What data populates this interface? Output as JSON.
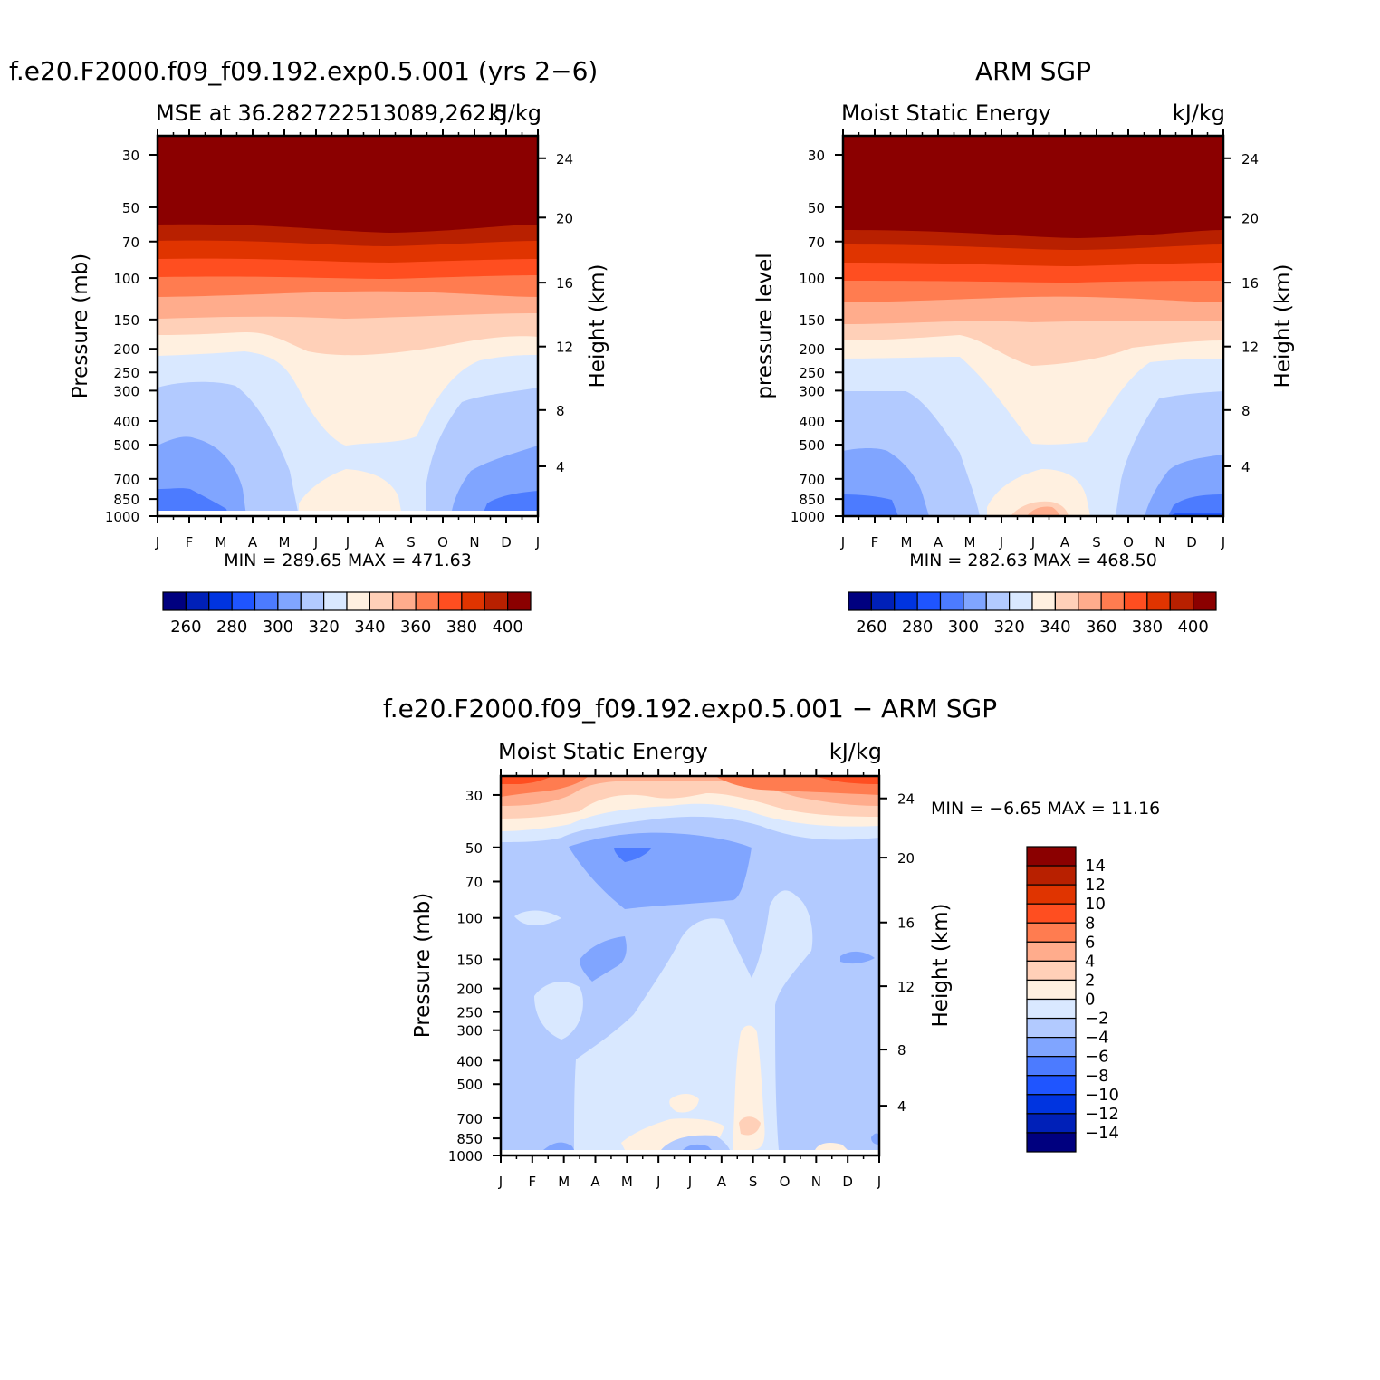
{
  "colors": {
    "scale_16": [
      "#00007f",
      "#0020b8",
      "#0034e0",
      "#1f55ff",
      "#4c7bff",
      "#80a5ff",
      "#b2caff",
      "#d9e8ff",
      "#fff0e0",
      "#ffd0b8",
      "#ffac8c",
      "#ff7c50",
      "#ff4e20",
      "#e03400",
      "#b82000",
      "#8b0000"
    ],
    "scale_14": [
      "#00007f",
      "#0020b8",
      "#0034e0",
      "#1f55ff",
      "#4c7bff",
      "#80a5ff",
      "#b2caff",
      "#d9e8ff",
      "#fff0e0",
      "#ffd0b8",
      "#ffac8c",
      "#ff7c50",
      "#ff4e20",
      "#e03400",
      "#b82000",
      "#8b0000"
    ]
  },
  "chart_data": [
    {
      "type": "heatmap",
      "panel": "model",
      "title": "f.e20.F2000.f09_f09.192.exp0.5.001 (yrs 2−6)",
      "left_string": "MSE at 36.282722513089,262.5",
      "right_string": "kJ/kg",
      "ylabel": "Pressure (mb)",
      "ylabel_right": "Height (km)",
      "x_ticks": [
        "J",
        "F",
        "M",
        "A",
        "M",
        "J",
        "J",
        "A",
        "S",
        "O",
        "N",
        "D",
        "J"
      ],
      "y_ticks": [
        "30",
        "50",
        "70",
        "100",
        "150",
        "200",
        "250",
        "300",
        "400",
        "500",
        "700",
        "850",
        "1000"
      ],
      "y_ticks_right": [
        "24",
        "20",
        "16",
        "12",
        "8",
        "4"
      ],
      "stats": "MIN = 289.65 MAX = 471.63",
      "min": 289.65,
      "max": 471.63,
      "colorbar": {
        "orientation": "horizontal",
        "labels": [
          "260",
          "280",
          "300",
          "320",
          "340",
          "360",
          "380",
          "400"
        ]
      }
    },
    {
      "type": "heatmap",
      "panel": "obs",
      "title": "ARM SGP",
      "left_string": "Moist Static Energy",
      "right_string": "kJ/kg",
      "ylabel": "pressure level",
      "ylabel_right": "Height (km)",
      "x_ticks": [
        "J",
        "F",
        "M",
        "A",
        "M",
        "J",
        "J",
        "A",
        "S",
        "O",
        "N",
        "D",
        "J"
      ],
      "y_ticks": [
        "30",
        "50",
        "70",
        "100",
        "150",
        "200",
        "250",
        "300",
        "400",
        "500",
        "700",
        "850",
        "1000"
      ],
      "y_ticks_right": [
        "24",
        "20",
        "16",
        "12",
        "8",
        "4"
      ],
      "stats": "MIN = 282.63 MAX = 468.50",
      "min": 282.63,
      "max": 468.5,
      "colorbar": {
        "orientation": "horizontal",
        "labels": [
          "260",
          "280",
          "300",
          "320",
          "340",
          "360",
          "380",
          "400"
        ]
      }
    },
    {
      "type": "heatmap",
      "panel": "diff",
      "title": "f.e20.F2000.f09_f09.192.exp0.5.001 − ARM SGP",
      "left_string": "Moist Static Energy",
      "right_string": "kJ/kg",
      "ylabel": "Pressure (mb)",
      "ylabel_right": "Height (km)",
      "x_ticks": [
        "J",
        "F",
        "M",
        "A",
        "M",
        "J",
        "J",
        "A",
        "S",
        "O",
        "N",
        "D",
        "J"
      ],
      "y_ticks": [
        "30",
        "50",
        "70",
        "100",
        "150",
        "200",
        "250",
        "300",
        "400",
        "500",
        "700",
        "850",
        "1000"
      ],
      "y_ticks_right": [
        "24",
        "20",
        "16",
        "12",
        "8",
        "4"
      ],
      "stats": "MIN = −6.65 MAX = 11.16",
      "min": -6.65,
      "max": 11.16,
      "colorbar": {
        "orientation": "vertical",
        "labels": [
          "14",
          "12",
          "10",
          "8",
          "6",
          "4",
          "2",
          "0",
          "−2",
          "−4",
          "−6",
          "−8",
          "−10",
          "−12",
          "−14"
        ]
      }
    }
  ]
}
